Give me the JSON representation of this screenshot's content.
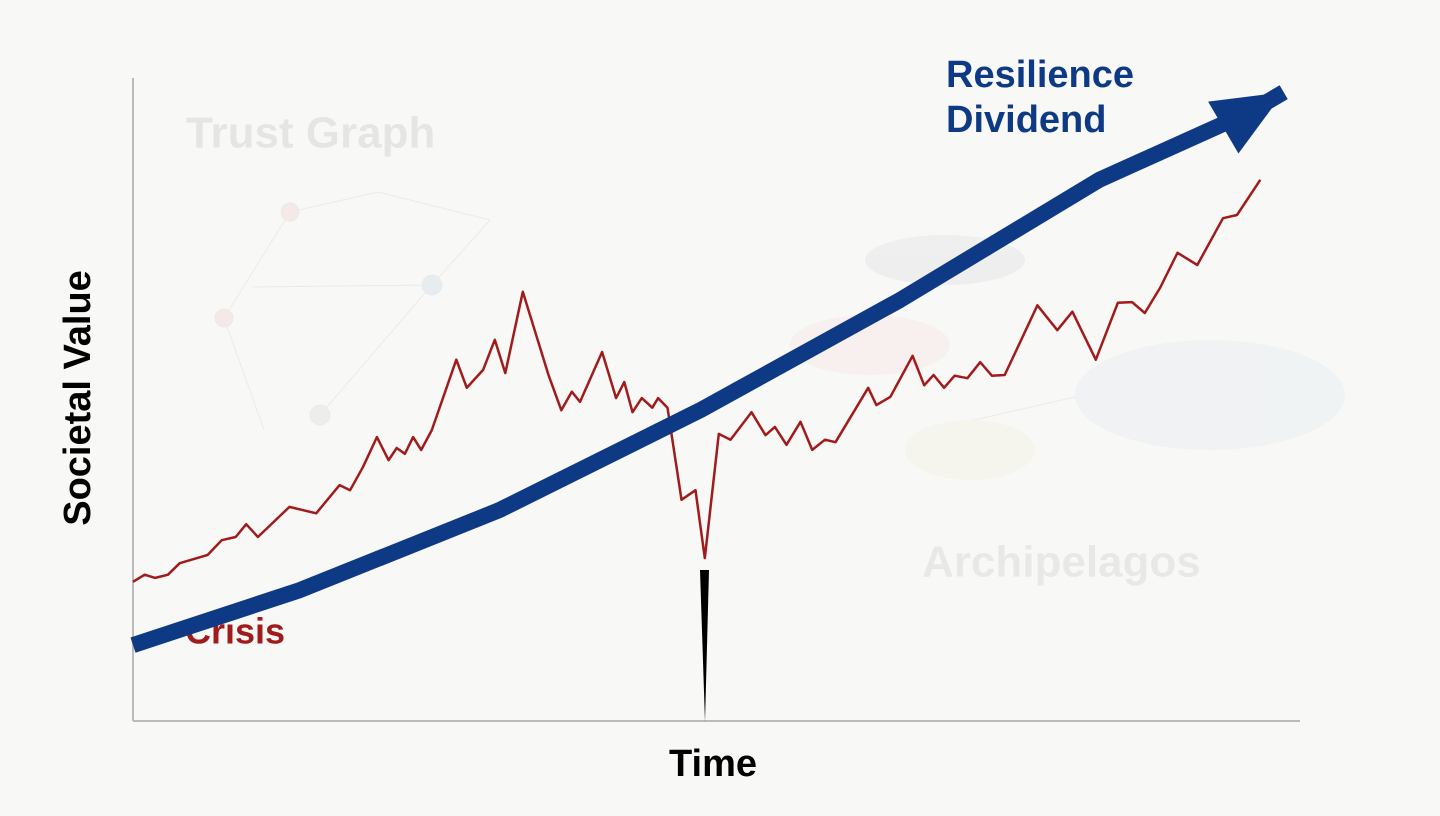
{
  "chart_data": {
    "type": "line",
    "watermarks": [
      "Trust Graph",
      "Archipelagos"
    ],
    "xlabel": "Time",
    "ylabel": "Societal Value",
    "xlim": [
      0,
      100
    ],
    "ylim": [
      0,
      100
    ],
    "series": [
      {
        "name": "Crisis",
        "color": "#a01c1c",
        "x": [
          0,
          1.0,
          1.9,
          3.0,
          4.0,
          6.4,
          7.6,
          8.8,
          9.7,
          10.7,
          13.4,
          15.7,
          17.7,
          18.6,
          19.7,
          20.9,
          21.9,
          22.6,
          23.3,
          24.0,
          24.7,
          25.6,
          27.7,
          28.6,
          30.0,
          31.0,
          31.9,
          33.4,
          35.6,
          36.7,
          37.6,
          38.3,
          40.2,
          41.4,
          42.1,
          42.8,
          43.6,
          44.5,
          45.0,
          45.8,
          47.0,
          48.2,
          49.0,
          50.2,
          51.2,
          53.0,
          54.2,
          55.0,
          56.0,
          57.2,
          58.2,
          59.3,
          60.2,
          63.0,
          63.7,
          64.9,
          66.8,
          67.8,
          68.6,
          69.5,
          70.4,
          71.5,
          72.6,
          73.6,
          74.7,
          77.5,
          79.2,
          80.5,
          82.5,
          84.4,
          85.6,
          86.7,
          88.0,
          89.5,
          91.2,
          93.4,
          94.6,
          96.6
        ],
        "values": [
          21.6,
          22.7,
          22.2,
          22.7,
          24.5,
          25.8,
          28.1,
          28.6,
          30.6,
          28.6,
          33.3,
          32.3,
          36.7,
          35.9,
          39.5,
          44.2,
          40.6,
          42.5,
          41.6,
          44.2,
          42.2,
          45.3,
          56.3,
          51.9,
          54.7,
          59.4,
          54.2,
          66.9,
          53.9,
          48.4,
          51.3,
          49.7,
          57.5,
          50.3,
          52.8,
          48.1,
          50.3,
          48.8,
          50.3,
          48.8,
          34.4,
          35.9,
          25.3,
          44.7,
          43.8,
          48.1,
          44.5,
          45.8,
          43.0,
          46.6,
          42.2,
          43.8,
          43.4,
          51.9,
          49.2,
          50.5,
          56.9,
          52.3,
          53.9,
          51.9,
          53.8,
          53.4,
          55.9,
          53.8,
          53.9,
          64.8,
          60.9,
          63.8,
          56.3,
          65.2,
          65.3,
          63.6,
          67.5,
          73.0,
          71.1,
          78.4,
          78.9,
          84.4
        ]
      },
      {
        "name": "Resilience Dividend",
        "color": "#0e3a85",
        "x": [
          0,
          14.3,
          31.4,
          48.6,
          65.7,
          82.8,
          95.7,
          98.6
        ],
        "values": [
          11.7,
          20.3,
          32.8,
          48.4,
          65.6,
          84.4,
          95.0,
          98.1
        ]
      }
    ]
  }
}
